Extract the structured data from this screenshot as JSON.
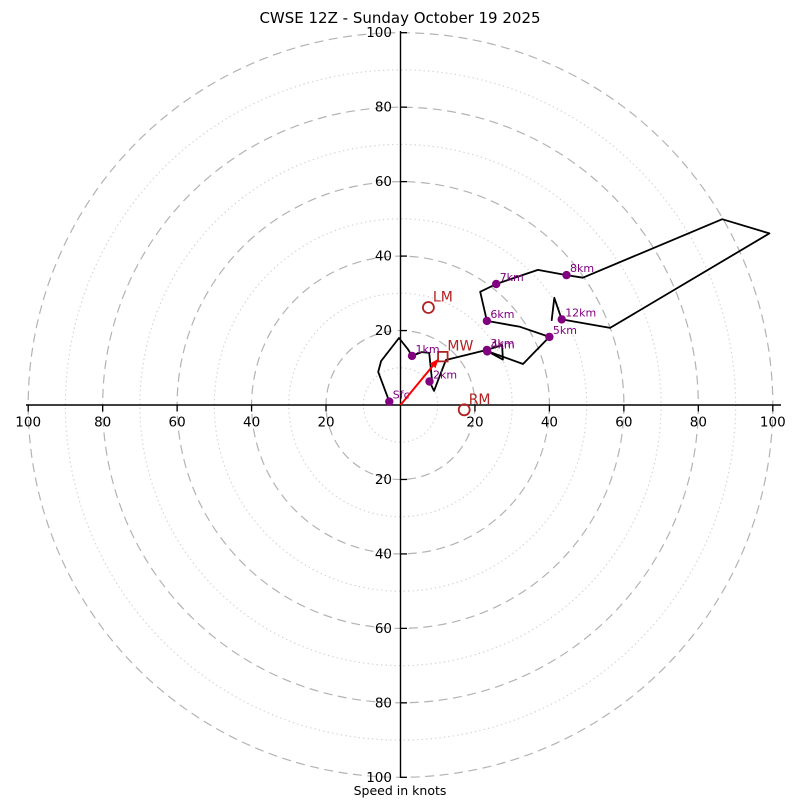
{
  "title": "CWSE 12Z - Sunday October 19 2025",
  "chart_data": {
    "type": "line",
    "subtype": "hodograph-polar",
    "title": "CWSE 12Z - Sunday October 19 2025",
    "axis_label": "Speed in knots",
    "units": "knots",
    "axis_range": [
      -100,
      100
    ],
    "axis_tick_values": [
      20,
      40,
      60,
      80,
      100
    ],
    "ring_radii_dashed": [
      20,
      40,
      60,
      80,
      100
    ],
    "ring_radii_dotted": [
      10,
      30,
      50,
      70,
      90
    ],
    "grid": true,
    "legend": "none",
    "trace": [
      [
        -3.0,
        0.9
      ],
      [
        -6.0,
        8.9
      ],
      [
        -5.2,
        11.8
      ],
      [
        -0.4,
        18.0
      ],
      [
        2.0,
        15.0
      ],
      [
        3.1,
        13.2
      ],
      [
        5.7,
        14.2
      ],
      [
        7.7,
        14.0
      ],
      [
        8.5,
        6.4
      ],
      [
        7.8,
        6.3
      ],
      [
        9.0,
        3.8
      ],
      [
        12.2,
        12.1
      ],
      [
        23.2,
        14.8
      ],
      [
        27.3,
        16.1
      ],
      [
        27.5,
        12.2
      ],
      [
        23.2,
        14.5
      ],
      [
        32.9,
        11.0
      ],
      [
        40.0,
        18.3
      ],
      [
        32.1,
        21.0
      ],
      [
        23.2,
        22.6
      ],
      [
        21.4,
        30.4
      ],
      [
        25.7,
        32.5
      ],
      [
        36.9,
        36.3
      ],
      [
        44.6,
        34.9
      ],
      [
        49.0,
        34.2
      ],
      [
        86.4,
        49.9
      ],
      [
        99.1,
        46.1
      ],
      [
        56.3,
        20.7
      ],
      [
        43.3,
        23.0
      ],
      [
        41.3,
        28.8
      ],
      [
        40.6,
        22.8
      ]
    ],
    "altitude_markers": [
      {
        "label": "Sfc",
        "u": -3.0,
        "v": 0.9
      },
      {
        "label": "1km",
        "u": 3.1,
        "v": 13.2
      },
      {
        "label": "2km",
        "u": 7.8,
        "v": 6.3
      },
      {
        "label": "3km",
        "u": 23.2,
        "v": 14.8
      },
      {
        "label": "4km",
        "u": 23.3,
        "v": 14.4
      },
      {
        "label": "5km",
        "u": 40.0,
        "v": 18.3
      },
      {
        "label": "6km",
        "u": 23.2,
        "v": 22.6
      },
      {
        "label": "7km",
        "u": 25.7,
        "v": 32.5
      },
      {
        "label": "8km",
        "u": 44.6,
        "v": 34.9
      },
      {
        "label": "12km",
        "u": 43.3,
        "v": 23.0
      }
    ],
    "storm_motion_markers": [
      {
        "label": "LM",
        "marker": "circle",
        "u": 7.5,
        "v": 26.2
      },
      {
        "label": "RM",
        "marker": "circle",
        "u": 17.1,
        "v": -1.3
      },
      {
        "label": "MW",
        "marker": "square",
        "u": 11.4,
        "v": 13.0
      }
    ],
    "mean_wind_arrow": {
      "from": [
        0,
        0
      ],
      "to": [
        10.3,
        12.5
      ]
    },
    "colors": {
      "trace": "#000000",
      "ring_dashed": "#b3b3b3",
      "ring_dotted": "#d2d2d2",
      "axis": "#000000",
      "tick_label": "#000000",
      "altitude": "#800080",
      "storm_marker": "#b22222",
      "arrow": "#ff0000"
    }
  }
}
